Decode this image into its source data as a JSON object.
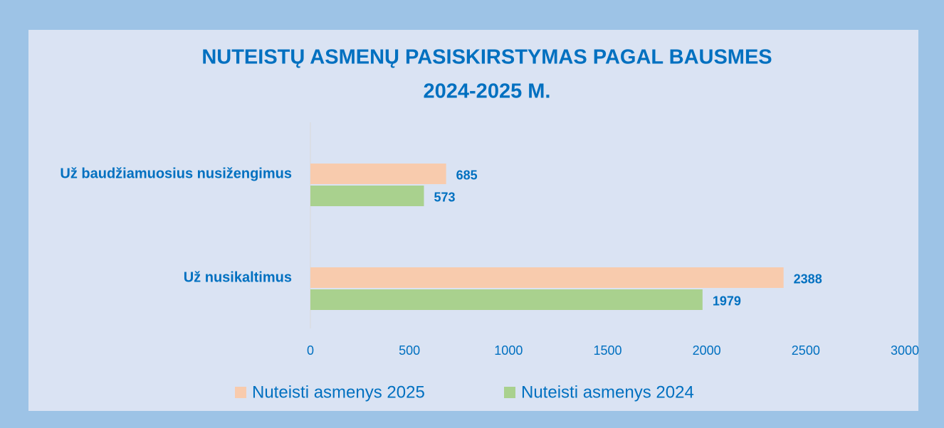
{
  "chart_data": {
    "type": "hbar",
    "title": [
      "NUTEISTŲ ASMENŲ PASISKIRSTYMAS PAGAL BAUSMES",
      "2024-2025 M."
    ],
    "categories": [
      "Už baudžiamuosius nusižengimus",
      "Už nusikaltimus"
    ],
    "series": [
      {
        "name": "Nuteisti asmenys 2025",
        "color": "#f8cbad",
        "values": [
          685,
          2388
        ]
      },
      {
        "name": "Nuteisti asmenys 2024",
        "color": "#a9d18e",
        "values": [
          573,
          1979
        ]
      }
    ],
    "xlim": [
      0,
      3000
    ],
    "xticks": [
      0,
      500,
      1000,
      1500,
      2000,
      2500,
      3000
    ],
    "grid": false,
    "legend": "bottom"
  }
}
